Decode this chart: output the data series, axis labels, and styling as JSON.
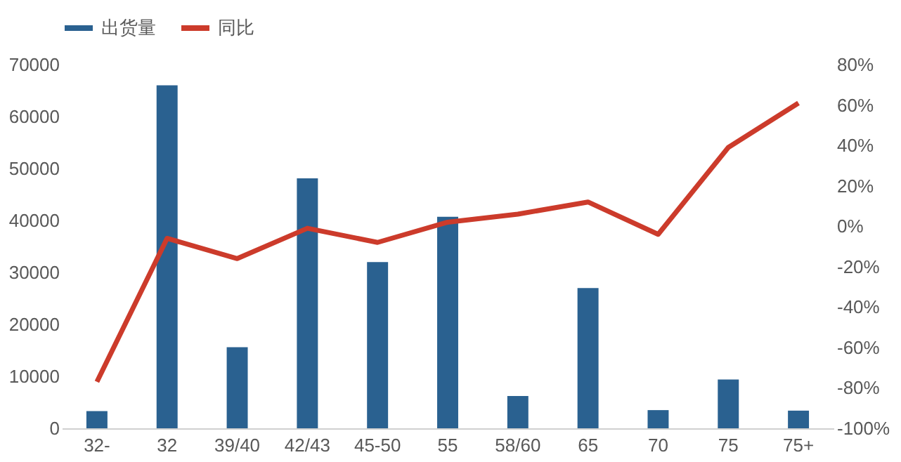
{
  "chart_data": {
    "type": "bar",
    "categories": [
      "32-",
      "32",
      "39/40",
      "42/43",
      "45-50",
      "55",
      "58/60",
      "65",
      "70",
      "75",
      "75+"
    ],
    "series": [
      {
        "name": "出货量",
        "color": "#2a6190",
        "values": [
          3300,
          66000,
          15600,
          48100,
          32000,
          40700,
          6200,
          27000,
          3500,
          9400,
          3400
        ]
      },
      {
        "name": "同比",
        "type": "line",
        "axis": "y2",
        "color": "#cc3b2b",
        "values": [
          -77,
          -6,
          -16,
          -1,
          -8,
          2,
          6,
          12,
          -4,
          39,
          61
        ]
      }
    ],
    "ylim": [
      0,
      70000
    ],
    "yticks": [
      0,
      10000,
      20000,
      30000,
      40000,
      50000,
      60000,
      70000
    ],
    "y2lim": [
      -100,
      80
    ],
    "y2ticks": [
      {
        "value": -100,
        "label": "-100%"
      },
      {
        "value": -80,
        "label": "-80%"
      },
      {
        "value": -60,
        "label": "-60%"
      },
      {
        "value": -40,
        "label": "-40%"
      },
      {
        "value": -20,
        "label": "-20%"
      },
      {
        "value": 0,
        "label": "0%"
      },
      {
        "value": 20,
        "label": "20%"
      },
      {
        "value": 40,
        "label": "40%"
      },
      {
        "value": 60,
        "label": "60%"
      },
      {
        "value": 80,
        "label": "80%"
      }
    ],
    "legend": "top",
    "grid": false,
    "marker": "none"
  }
}
